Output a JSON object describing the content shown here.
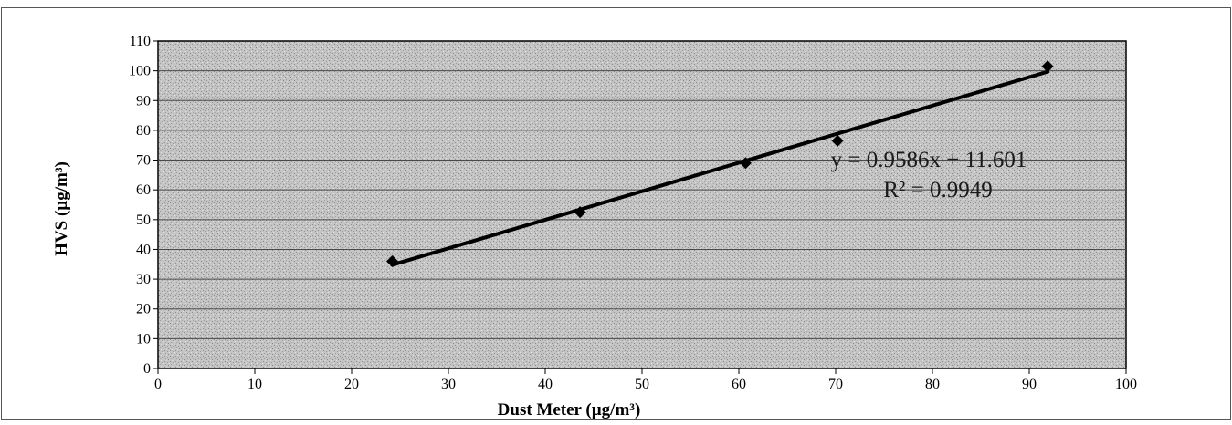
{
  "chart_data": {
    "type": "scatter",
    "xlabel": "Dust Meter  (µg/m³)",
    "ylabel": "HVS (µg/m³)",
    "xlim": [
      0,
      100
    ],
    "ylim": [
      0,
      110
    ],
    "xticks": [
      0,
      10,
      20,
      30,
      40,
      50,
      60,
      70,
      80,
      90,
      100
    ],
    "yticks": [
      0,
      10,
      20,
      30,
      40,
      50,
      60,
      70,
      80,
      90,
      100,
      110
    ],
    "grid": "horizontal",
    "points": [
      {
        "x": 24.2,
        "y": 36
      },
      {
        "x": 43.6,
        "y": 52.5
      },
      {
        "x": 60.7,
        "y": 69
      },
      {
        "x": 70.2,
        "y": 76.5
      },
      {
        "x": 91.9,
        "y": 101.5
      }
    ],
    "trendline": {
      "type": "linear",
      "slope": 0.9586,
      "intercept": 11.601,
      "x_range": [
        24.2,
        91.9
      ]
    },
    "annotations": {
      "equation": "y = 0.9586x + 11.601",
      "r_squared": "R² = 0.9949"
    },
    "colors": {
      "plot_background": "#bdbdbd",
      "gridline": "#4a4a4a",
      "marker": "#000000",
      "trendline": "#000000"
    }
  }
}
